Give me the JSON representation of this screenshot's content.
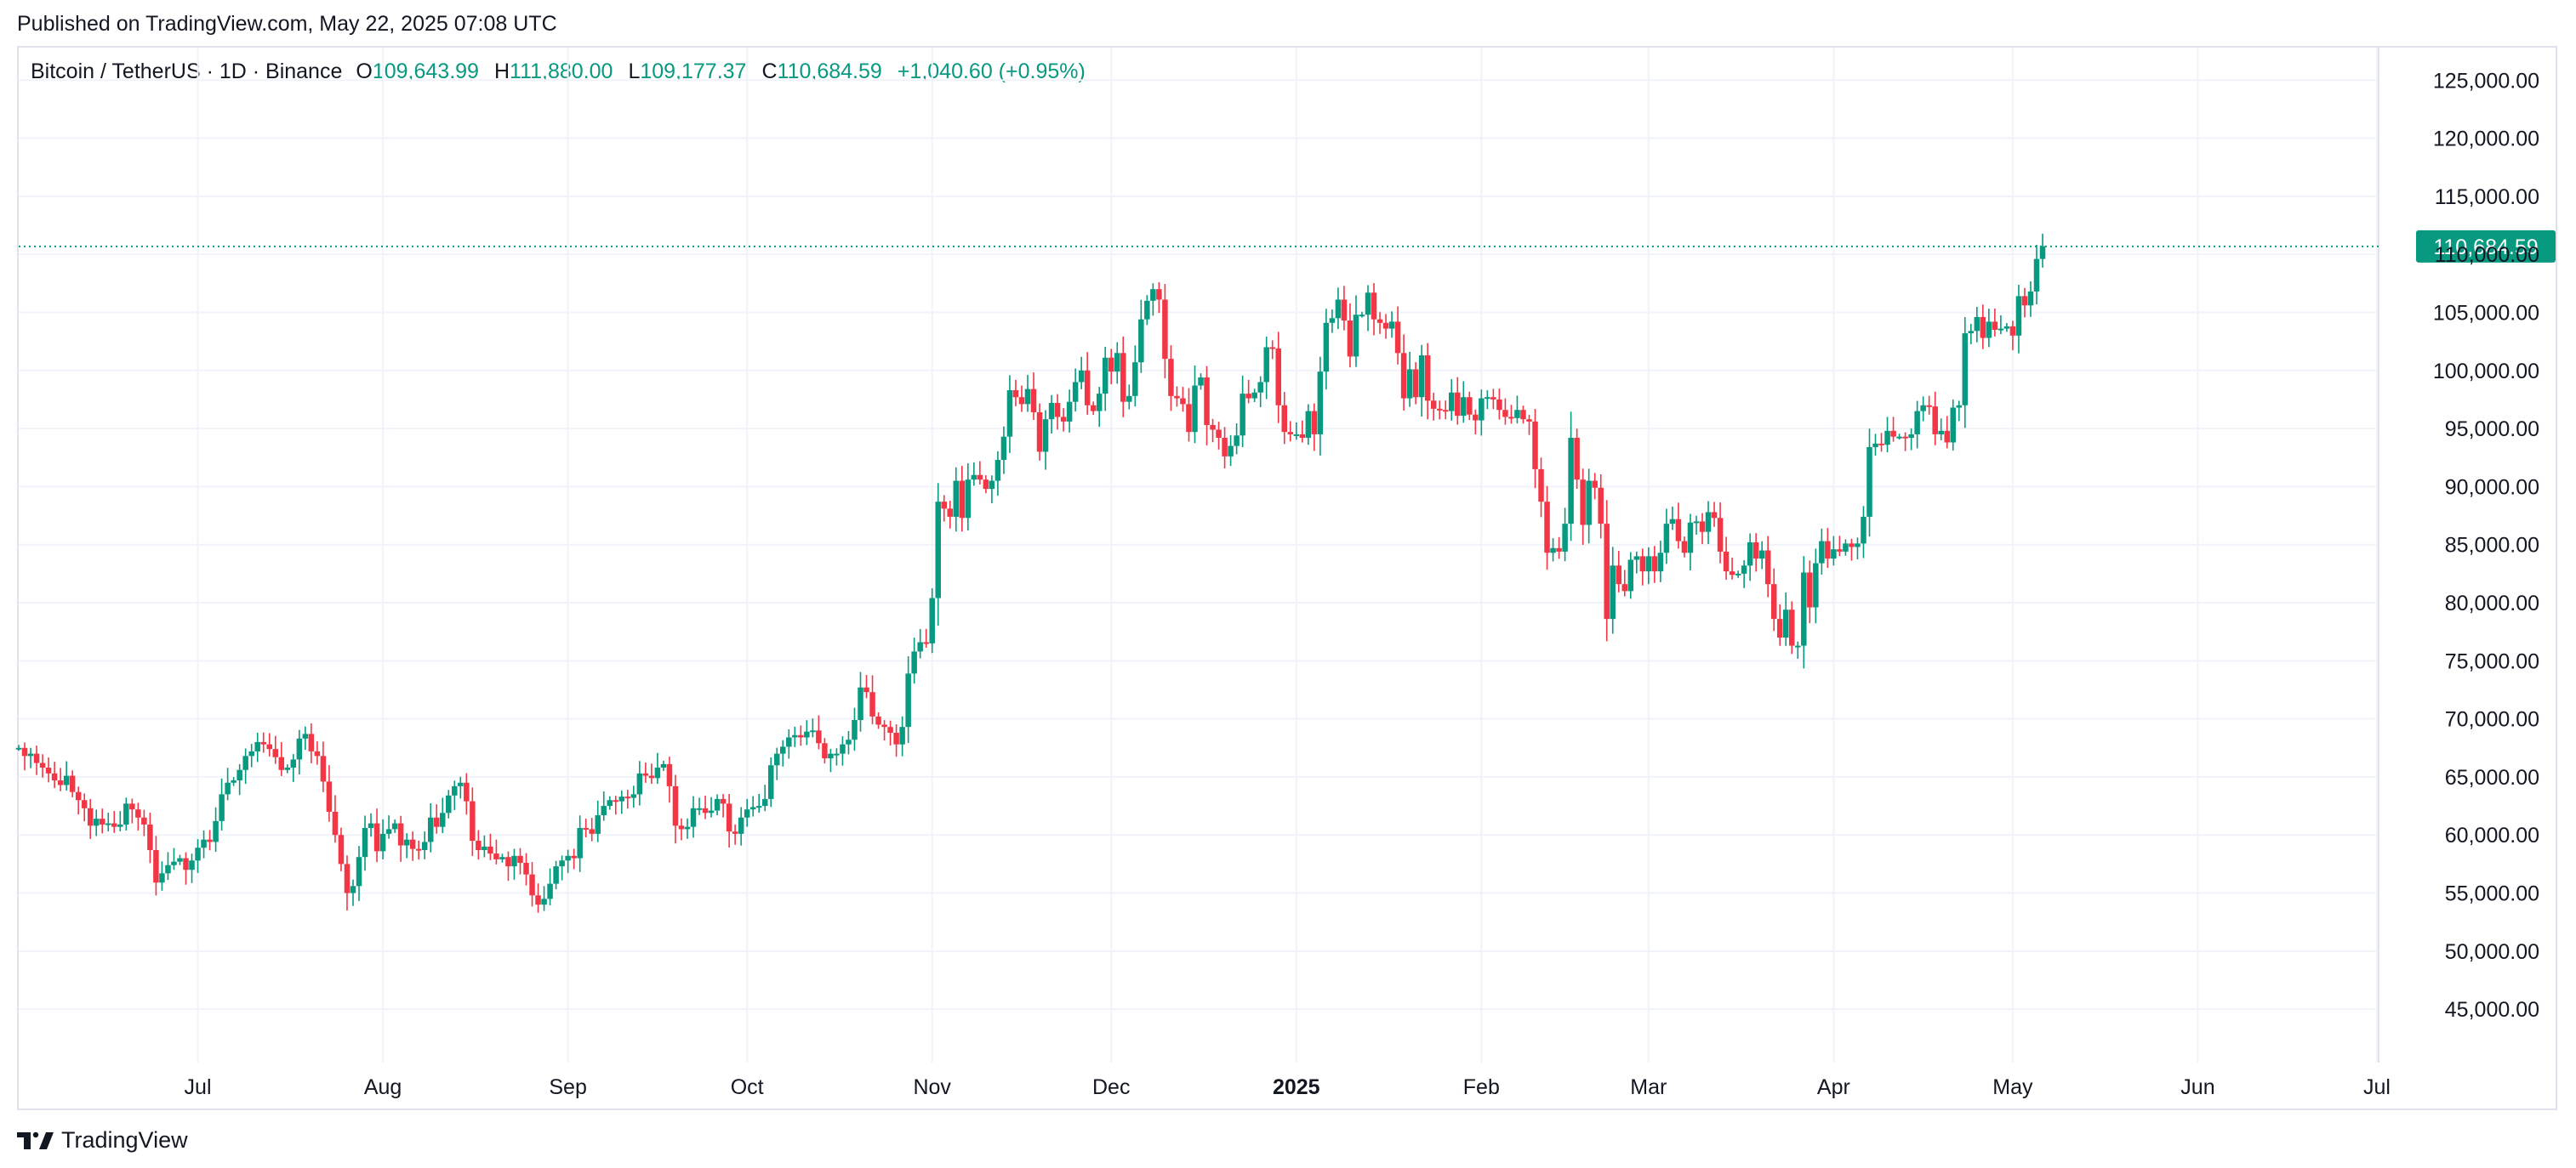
{
  "header": {
    "published": "Published on TradingView.com, May 22, 2025 07:08 UTC"
  },
  "legend": {
    "symbol": "Bitcoin / TetherUS · 1D · Binance",
    "open_label": "O",
    "open": "109,643.99",
    "high_label": "H",
    "high": "111,880.00",
    "low_label": "L",
    "low": "109,177.37",
    "close_label": "C",
    "close": "110,684.59",
    "change": "+1,040.60 (+0.95%)"
  },
  "footer": {
    "brand": "TradingView",
    "logo_icon": "tradingview-logo-icon"
  },
  "colors": {
    "up": "#089981",
    "down": "#f23645",
    "grid": "#f0f3fa",
    "text": "#131722",
    "axis_border": "#e0e3eb"
  },
  "chart_data": {
    "type": "candlestick",
    "interval": "1D",
    "y_ticks": [
      45000,
      50000,
      55000,
      60000,
      65000,
      70000,
      75000,
      80000,
      85000,
      90000,
      95000,
      100000,
      105000,
      110000,
      115000,
      120000,
      125000
    ],
    "y_tick_labels": [
      "45,000.00",
      "50,000.00",
      "55,000.00",
      "60,000.00",
      "65,000.00",
      "70,000.00",
      "75,000.00",
      "80,000.00",
      "85,000.00",
      "90,000.00",
      "95,000.00",
      "100,000.00",
      "105,000.00",
      "110,000.00",
      "115,000.00",
      "120,000.00",
      "125,000.00"
    ],
    "ylim": [
      40400,
      127800
    ],
    "x_labels": [
      {
        "label": "Jul",
        "date": "2024-07-01",
        "bold": false
      },
      {
        "label": "Aug",
        "date": "2024-08-01",
        "bold": false
      },
      {
        "label": "Sep",
        "date": "2024-09-01",
        "bold": false
      },
      {
        "label": "Oct",
        "date": "2024-10-01",
        "bold": false
      },
      {
        "label": "Nov",
        "date": "2024-11-01",
        "bold": false
      },
      {
        "label": "Dec",
        "date": "2024-12-01",
        "bold": false
      },
      {
        "label": "2025",
        "date": "2025-01-01",
        "bold": true
      },
      {
        "label": "Feb",
        "date": "2025-02-01",
        "bold": false
      },
      {
        "label": "Mar",
        "date": "2025-03-01",
        "bold": false
      },
      {
        "label": "Apr",
        "date": "2025-04-01",
        "bold": false
      },
      {
        "label": "May",
        "date": "2025-05-01",
        "bold": false
      },
      {
        "label": "Jun",
        "date": "2025-06-01",
        "bold": false
      },
      {
        "label": "Jul",
        "date": "2025-07-01",
        "bold": false
      }
    ],
    "xlim": [
      "2024-06-01",
      "2025-07-01"
    ],
    "last_price": 110684.59,
    "last_price_label": "110,684.59",
    "start_date": "2024-06-01",
    "closes": [
      67500,
      66800,
      67000,
      66200,
      65800,
      65300,
      64700,
      64300,
      65100,
      63700,
      63000,
      62300,
      60800,
      61400,
      60900,
      61000,
      60700,
      60900,
      62700,
      62200,
      61500,
      60900,
      58700,
      55900,
      56700,
      57400,
      57700,
      58000,
      57000,
      57800,
      58900,
      59600,
      59400,
      61200,
      63500,
      64500,
      64700,
      65600,
      66800,
      67200,
      68000,
      67800,
      67400,
      66700,
      65600,
      65800,
      66500,
      68300,
      68700,
      67200,
      66800,
      64600,
      62000,
      60000,
      57500,
      55000,
      55600,
      58100,
      60600,
      61000,
      58600,
      60100,
      60500,
      61000,
      59100,
      59600,
      58800,
      58700,
      59400,
      61500,
      60700,
      61900,
      63400,
      64200,
      64500,
      62900,
      59500,
      58700,
      59000,
      58400,
      57900,
      58100,
      57300,
      58200,
      57600,
      56600,
      54800,
      54000,
      54500,
      55800,
      57300,
      57800,
      58200,
      58000,
      60600,
      60500,
      60100,
      61700,
      62500,
      63000,
      62900,
      63300,
      63200,
      63500,
      65300,
      65100,
      64900,
      65800,
      66100,
      64200,
      60800,
      60500,
      60700,
      62300,
      62300,
      61900,
      62100,
      63100,
      62700,
      60300,
      60100,
      61500,
      62200,
      62400,
      62500,
      63100,
      66000,
      67000,
      67600,
      68400,
      68600,
      68400,
      68900,
      69000,
      67900,
      66600,
      67000,
      67000,
      67800,
      68200,
      69900,
      72700,
      72300,
      70200,
      69500,
      69300,
      68800,
      67800,
      69300,
      73900,
      75800,
      76600,
      76500,
      80400,
      88700,
      88100,
      87400,
      90500,
      87300,
      90600,
      91000,
      90600,
      89800,
      90500,
      92300,
      94300,
      98300,
      97700,
      97100,
      98400,
      96400,
      93000,
      95800,
      97200,
      96000,
      95600,
      97300,
      99000,
      100000,
      97000,
      96500,
      98000,
      101100,
      99900,
      101500,
      97300,
      97800,
      100700,
      104400,
      106000,
      107000,
      106100,
      101000,
      97800,
      97600,
      97100,
      94700,
      98700,
      99400,
      95300,
      94900,
      94200,
      92600,
      93500,
      94400,
      98000,
      97600,
      98100,
      99000,
      102000,
      101900,
      97000,
      94700,
      94500,
      94500,
      94200,
      96500,
      94500,
      99900,
      104100,
      104500,
      106100,
      104300,
      101200,
      104800,
      104800,
      106700,
      104400,
      104100,
      103600,
      104200,
      101500,
      97600,
      100100,
      97700,
      101300,
      97400,
      96700,
      96600,
      96500,
      98100,
      96100,
      97700,
      96200,
      95700,
      97600,
      97700,
      97500,
      96600,
      96000,
      95900,
      96600,
      95800,
      95600,
      91500,
      88700,
      84300,
      84700,
      84400,
      86800,
      94200,
      90600,
      86700,
      90500,
      89900,
      86800,
      78600,
      83200,
      81600,
      81000,
      83700,
      84000,
      82700,
      84000,
      82700,
      84300,
      86800,
      87200,
      85300,
      84300,
      86900,
      87000,
      86100,
      87800,
      87300,
      84400,
      82700,
      82400,
      82500,
      83200,
      85200,
      83800,
      84500,
      81600,
      78600,
      77000,
      79400,
      76300,
      76300,
      82600,
      79600,
      83400,
      85300,
      83800,
      84600,
      84400,
      85100,
      84800,
      85100,
      87400,
      93400,
      93700,
      93600,
      94800,
      94300,
      94300,
      94200,
      94500,
      96500,
      97000,
      96900,
      94500,
      94800,
      93800,
      96800,
      97000,
      103200,
      103400,
      104600,
      102800,
      104200,
      103500,
      103600,
      103800,
      103000,
      106400,
      105600,
      106800,
      109600,
      110700
    ],
    "ohlc_note_open_is_prev_close": true
  }
}
